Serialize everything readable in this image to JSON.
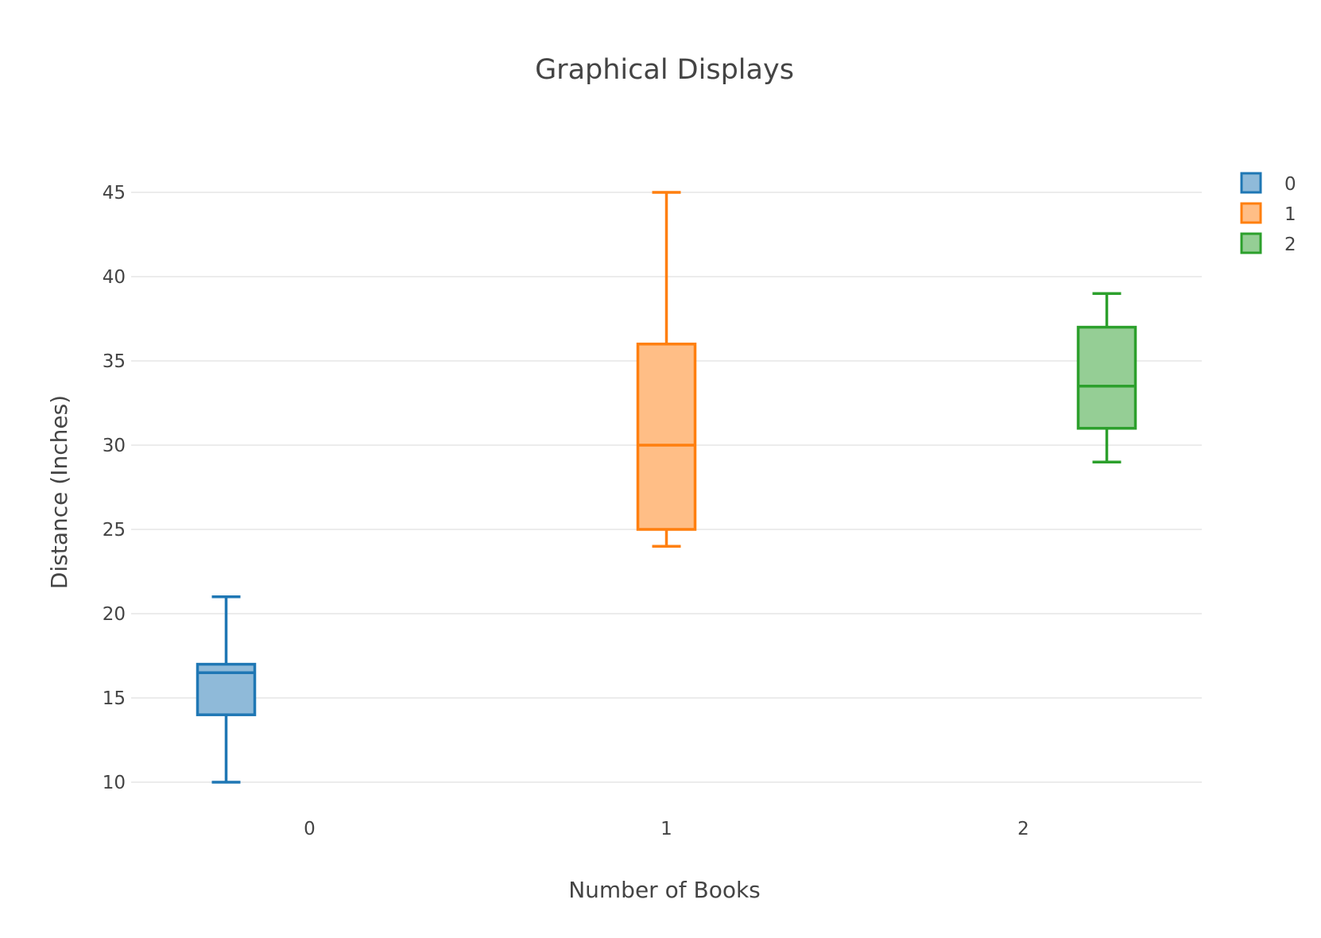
{
  "chart_data": {
    "type": "box",
    "title": "Graphical Displays",
    "xlabel": "Number of Books",
    "ylabel": "Distance (Inches)",
    "categories": [
      "0",
      "1",
      "2"
    ],
    "ylim": [
      8,
      49
    ],
    "yticks": [
      10,
      15,
      20,
      25,
      30,
      35,
      40,
      45
    ],
    "grid": true,
    "legend_position": "top-right",
    "series": [
      {
        "name": "0",
        "category": "0",
        "color": "#1f77b4",
        "fill": "#8fbad9",
        "min": 10,
        "q1": 14,
        "median": 16.5,
        "q3": 17,
        "max": 21
      },
      {
        "name": "1",
        "category": "1",
        "color": "#ff7f0e",
        "fill": "#ffbe86",
        "min": 24,
        "q1": 25,
        "median": 30,
        "q3": 36,
        "max": 45
      },
      {
        "name": "2",
        "category": "2",
        "color": "#2ca02c",
        "fill": "#95ce95",
        "min": 29,
        "q1": 31,
        "median": 33.5,
        "q3": 37,
        "max": 39
      }
    ]
  }
}
